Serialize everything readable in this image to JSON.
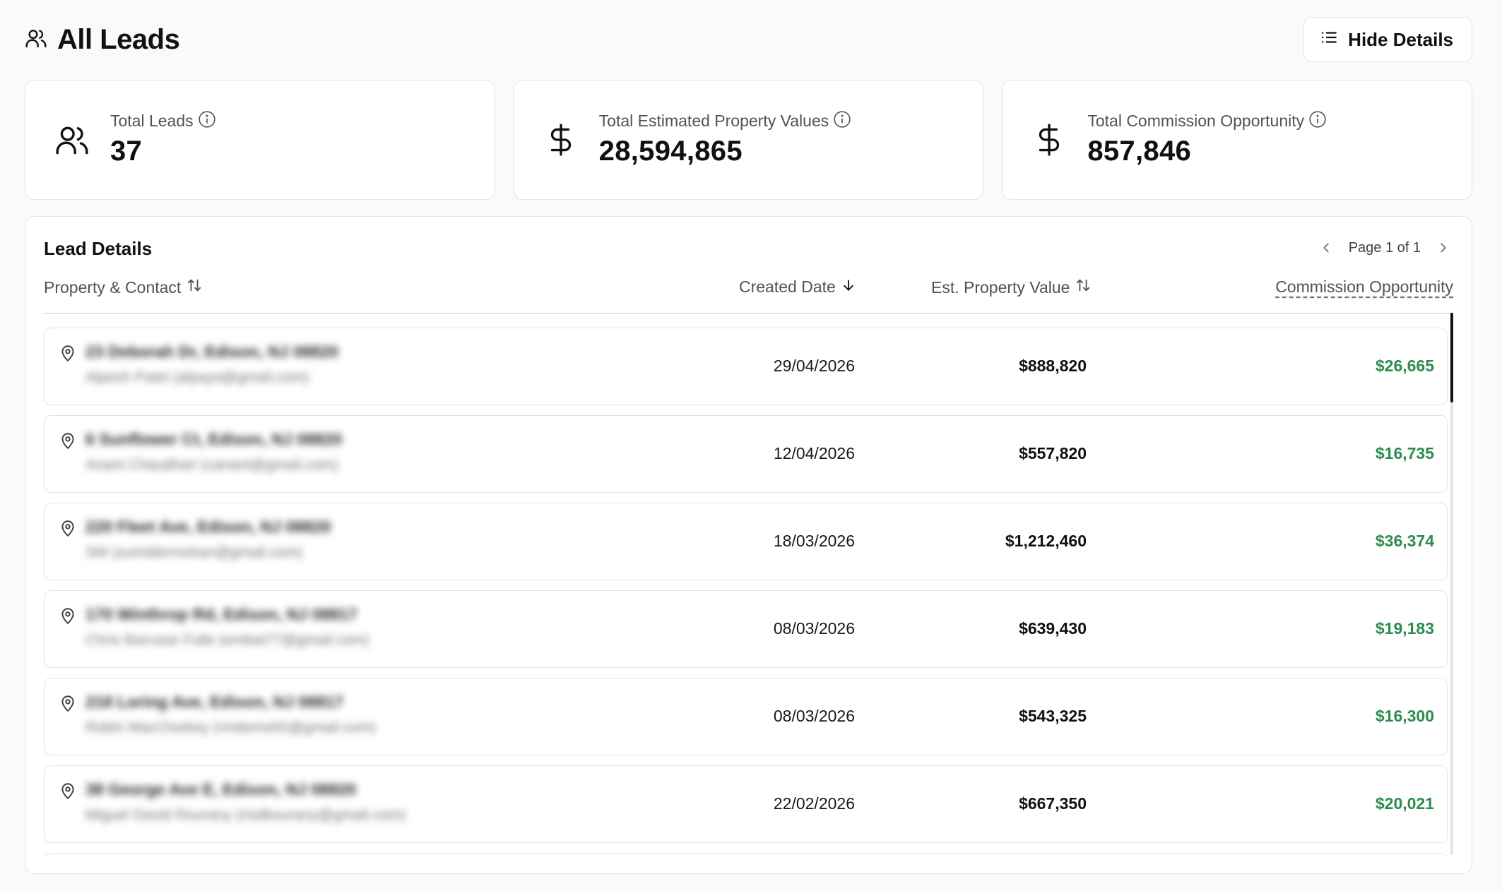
{
  "header": {
    "title": "All Leads",
    "hide_details_label": "Hide Details"
  },
  "stats": [
    {
      "label": "Total Leads",
      "value": "37",
      "icon": "users-icon"
    },
    {
      "label": "Total Estimated Property Values",
      "value": "28,594,865",
      "icon": "dollar-icon"
    },
    {
      "label": "Total Commission Opportunity",
      "value": "857,846",
      "icon": "dollar-icon"
    }
  ],
  "panel": {
    "title": "Lead Details",
    "page_label": "Page 1 of 1",
    "columns": {
      "property": "Property & Contact",
      "created": "Created Date",
      "value": "Est. Property Value",
      "commission": "Commission Opportunity"
    }
  },
  "rows": [
    {
      "address": "23 Deborah Dr, Edison, NJ 08820",
      "contact": "Alpesh Patel (alpaya@gmail.com)",
      "date": "29/04/2026",
      "value": "$888,820",
      "commission": "$26,665"
    },
    {
      "address": "6 Sunflower Ct, Edison, NJ 08820",
      "contact": "Anant Chaudhari (canant@gmail.com)",
      "date": "12/04/2026",
      "value": "$557,820",
      "commission": "$16,735"
    },
    {
      "address": "220 Fleet Ave, Edison, NJ 08820",
      "contact": "SM (sumidermohan@gmail.com)",
      "date": "18/03/2026",
      "value": "$1,212,460",
      "commission": "$36,374"
    },
    {
      "address": "170 Winthrop Rd, Edison, NJ 08817",
      "contact": "Chris Barcase Fulle (embat77@gmail.com)",
      "date": "08/03/2026",
      "value": "$639,430",
      "commission": "$19,183"
    },
    {
      "address": "218 Loring Ave, Edison, NJ 08817",
      "contact": "Robin MacCloskey (rmdomsh5@gmail.com)",
      "date": "08/03/2026",
      "value": "$543,325",
      "commission": "$16,300"
    },
    {
      "address": "38 George Ave E, Edison, NJ 08820",
      "contact": "Miguel David Rourany (midbourany@gmail.com)",
      "date": "22/02/2026",
      "value": "$667,350",
      "commission": "$20,021"
    }
  ],
  "colors": {
    "accent_green": "#2e8b4f",
    "border": "#e4e4e7"
  }
}
